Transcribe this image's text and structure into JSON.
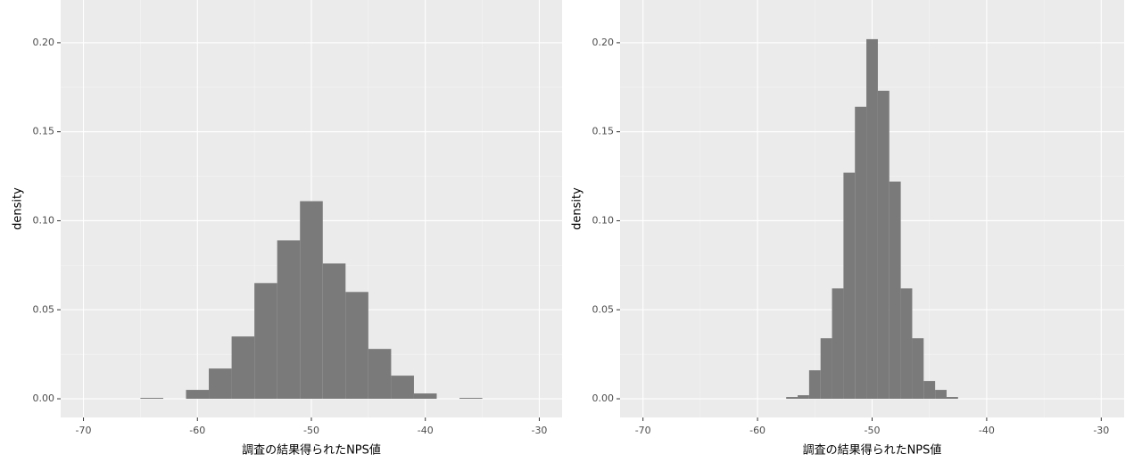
{
  "chart_data": [
    {
      "type": "histogram",
      "x_label": "調査の結果得られたNPS値",
      "y_label": "density",
      "bins": [
        -65,
        -63,
        -61,
        -59,
        -57,
        -55,
        -53,
        -51,
        -49,
        -47,
        -45,
        -43,
        -41,
        -39,
        -37,
        -35
      ],
      "values": [
        0.0005,
        0,
        0.005,
        0.017,
        0.035,
        0.065,
        0.089,
        0.111,
        0.076,
        0.06,
        0.028,
        0.013,
        0.003,
        0,
        0.0005
      ],
      "color": "#7a7a7a",
      "xlim": [
        -72,
        -28
      ],
      "ylim": [
        -0.0105,
        0.224
      ],
      "xticks": [
        -70,
        -60,
        -50,
        -40,
        -30
      ],
      "yticks": [
        {
          "value": 0,
          "label": "0.00"
        },
        {
          "value": 0.05,
          "label": "0.05"
        },
        {
          "value": 0.1,
          "label": "0.10"
        },
        {
          "value": 0.15,
          "label": "0.15"
        },
        {
          "value": 0.2,
          "label": "0.20"
        }
      ],
      "grid": true
    },
    {
      "type": "histogram",
      "x_label": "調査の結果得られたNPS値",
      "y_label": "density",
      "bins": [
        -57.5,
        -56.5,
        -55.5,
        -54.5,
        -53.5,
        -52.5,
        -51.5,
        -50.5,
        -49.5,
        -48.5,
        -47.5,
        -46.5,
        -45.5,
        -44.5,
        -43.5,
        -42.5
      ],
      "values": [
        0.001,
        0.002,
        0.016,
        0.034,
        0.062,
        0.127,
        0.164,
        0.202,
        0.173,
        0.122,
        0.062,
        0.034,
        0.01,
        0.005,
        0.001
      ],
      "color": "#7a7a7a",
      "xlim": [
        -72,
        -28
      ],
      "ylim": [
        -0.0105,
        0.224
      ],
      "xticks": [
        -70,
        -60,
        -50,
        -40,
        -30
      ],
      "yticks": [
        {
          "value": 0,
          "label": "0.00"
        },
        {
          "value": 0.05,
          "label": "0.05"
        },
        {
          "value": 0.1,
          "label": "0.10"
        },
        {
          "value": 0.15,
          "label": "0.15"
        },
        {
          "value": 0.2,
          "label": "0.20"
        }
      ],
      "grid": true
    }
  ]
}
